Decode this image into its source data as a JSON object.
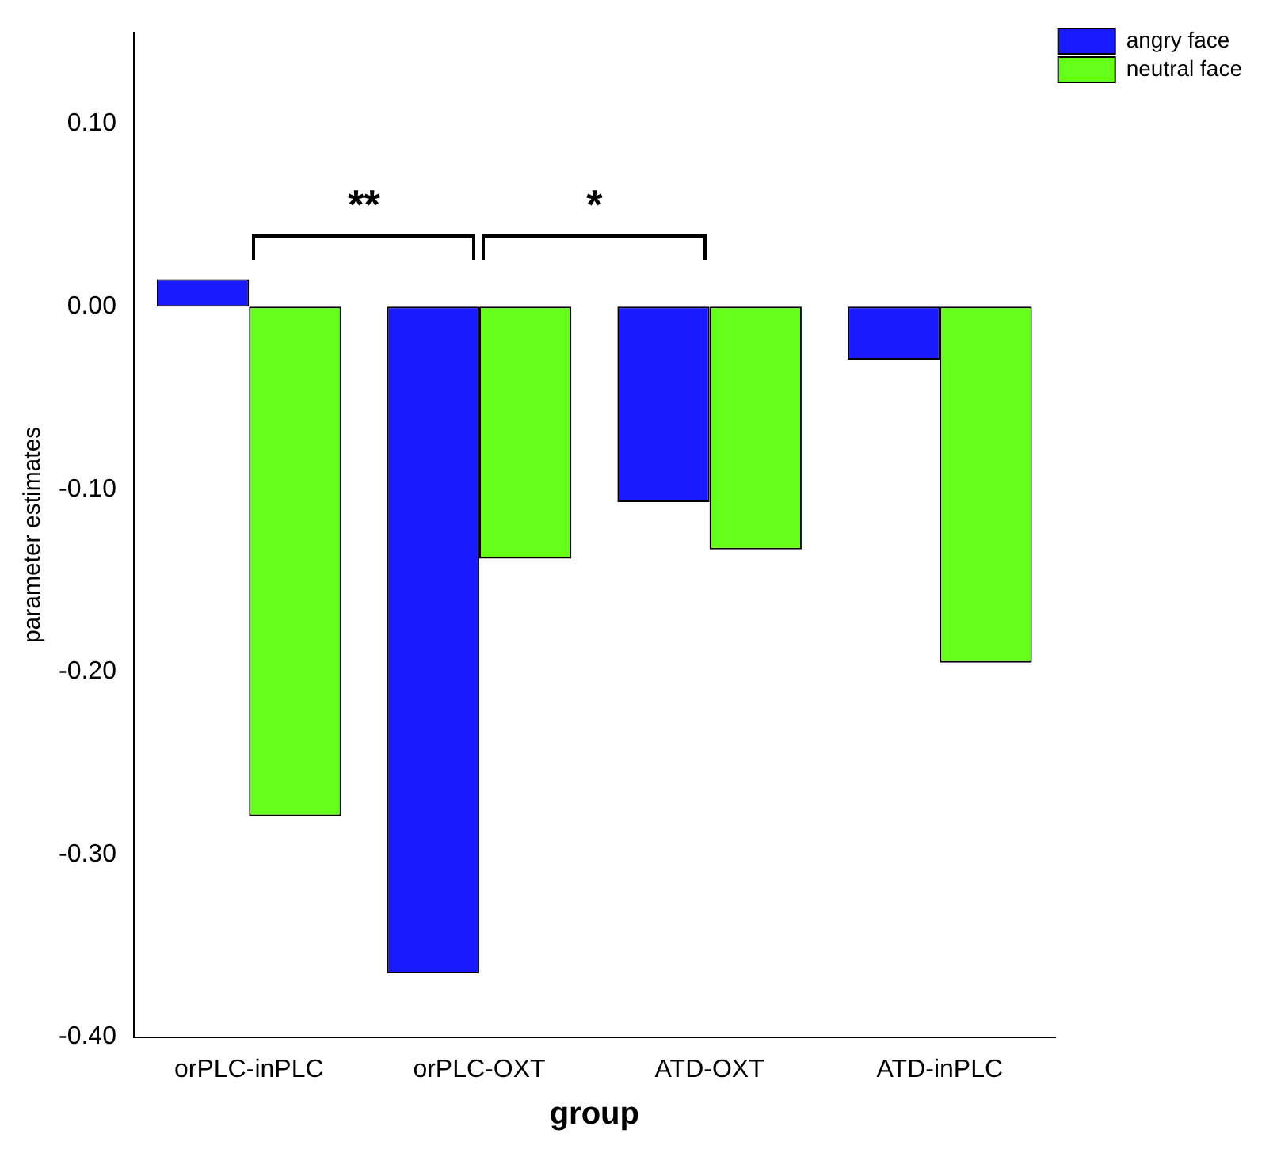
{
  "chart_data": {
    "type": "bar",
    "xlabel": "group",
    "ylabel": "parameter estimates",
    "categories": [
      "orPLC-inPLC",
      "orPLC-OXT",
      "ATD-OXT",
      "ATD-inPLC"
    ],
    "series": [
      {
        "name": "angry face",
        "color": "#1a1aff",
        "values": [
          0.015,
          -0.365,
          -0.107,
          -0.029
        ]
      },
      {
        "name": "neutral face",
        "color": "#66ff1a",
        "values": [
          -0.279,
          -0.138,
          -0.133,
          -0.195
        ]
      }
    ],
    "ylim": [
      -0.4,
      0.15
    ],
    "yticks": [
      {
        "value": -0.4,
        "label": "-0.40"
      },
      {
        "value": -0.3,
        "label": "-0.30"
      },
      {
        "value": -0.2,
        "label": "-0.20"
      },
      {
        "value": -0.1,
        "label": "-0.10"
      },
      {
        "value": 0,
        "label": "0.00"
      },
      {
        "value": 0.1,
        "label": "0.10"
      }
    ],
    "annotations": [
      "**",
      "*"
    ],
    "grid": false,
    "legend": "top right"
  }
}
